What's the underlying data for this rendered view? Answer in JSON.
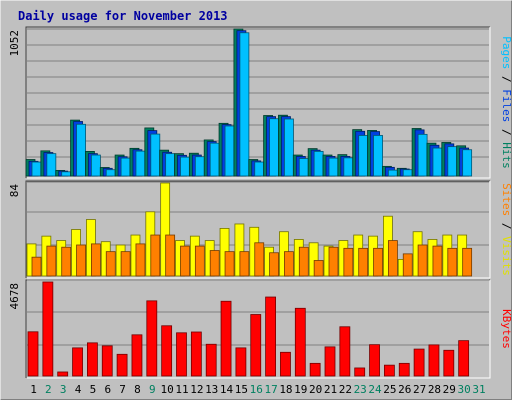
{
  "chart_data": {
    "type": "bar",
    "title": "Daily usage for November 2013",
    "days": [
      "1",
      "2",
      "3",
      "4",
      "5",
      "6",
      "7",
      "8",
      "9",
      "10",
      "11",
      "12",
      "13",
      "14",
      "15",
      "16",
      "17",
      "18",
      "19",
      "20",
      "21",
      "22",
      "23",
      "24",
      "25",
      "26",
      "27",
      "28",
      "29",
      "30",
      "31"
    ],
    "weekend_days": [
      "2",
      "3",
      "9",
      "16",
      "17",
      "23",
      "24",
      "30",
      "31"
    ],
    "panels": [
      {
        "id": "pages-files-hits",
        "max_label": "1052",
        "ymax": 1052,
        "axis_label_parts": [
          {
            "text": "Pages",
            "color": "#00c0ff"
          },
          {
            "text": " / ",
            "color": "#000000"
          },
          {
            "text": "Files",
            "color": "#0040e0"
          },
          {
            "text": " / ",
            "color": "#000000"
          },
          {
            "text": "Hits",
            "color": "#008060"
          }
        ],
        "series": [
          {
            "name": "Hits",
            "color": "#008060",
            "values": [
              118,
              180,
              40,
              400,
              176,
              61,
              150,
              198,
              344,
              185,
              160,
              163,
              258,
              377,
              1052,
              118,
              433,
              435,
              150,
              196,
              150,
              153,
              332,
              326,
              69,
              55,
              340,
              235,
              240,
              216,
              0
            ]
          },
          {
            "name": "Files",
            "color": "#0040e0",
            "values": [
              105,
              168,
              35,
              390,
              160,
              55,
              138,
              188,
              325,
              170,
              148,
              150,
              246,
              368,
              1040,
              108,
              425,
              425,
              140,
              185,
              140,
              140,
              320,
              318,
              62,
              50,
              330,
              220,
              230,
              200,
              0
            ]
          },
          {
            "name": "Pages",
            "color": "#00c0ff",
            "values": [
              100,
              160,
              30,
              370,
              150,
              45,
              128,
              178,
              300,
              160,
              135,
              138,
              235,
              358,
              1025,
              100,
              410,
              408,
              125,
              176,
              128,
              130,
              290,
              290,
              42,
              45,
              298,
              200,
              210,
              188,
              0
            ]
          }
        ]
      },
      {
        "id": "visits-sites",
        "max_label": "84",
        "ymax": 84,
        "axis_label_parts": [
          {
            "text": "Sites",
            "color": "#ff8000"
          },
          {
            "text": " / ",
            "color": "#000000"
          },
          {
            "text": "Visits",
            "color": "#e0e000"
          }
        ],
        "series": [
          {
            "name": "Visits",
            "color": "#ffff00",
            "values": [
              29,
              36,
              32,
              42,
              51,
              31,
              28,
              37,
              58,
              84,
              32,
              36,
              32,
              43,
              47,
              44,
              26,
              40,
              33,
              30,
              27,
              32,
              37,
              36,
              54,
              15,
              40,
              33,
              37,
              37,
              0
            ]
          },
          {
            "name": "Sites",
            "color": "#ff8000",
            "values": [
              17,
              27,
              26,
              28,
              29,
              22,
              22,
              29,
              37,
              37,
              27,
              27,
              23,
              22,
              22,
              30,
              21,
              22,
              26,
              14,
              26,
              25,
              25,
              25,
              32,
              20,
              28,
              27,
              25,
              25,
              0
            ]
          }
        ]
      },
      {
        "id": "kbytes",
        "max_label": "4678",
        "ymax": 4678,
        "axis_label_parts": [
          {
            "text": "KBytes",
            "color": "#ff0000"
          }
        ],
        "series": [
          {
            "name": "KBytes",
            "color": "#ff0000",
            "values": [
              2200,
              4678,
              200,
              1400,
              1650,
              1500,
              1080,
              2050,
              3740,
              2500,
              2150,
              2190,
              1580,
              3720,
              1400,
              3060,
              3930,
              1180,
              3370,
              630,
              1450,
              2450,
              400,
              1560,
              540,
              630,
              1340,
              1550,
              1280,
              1760,
              0
            ]
          }
        ]
      }
    ]
  }
}
